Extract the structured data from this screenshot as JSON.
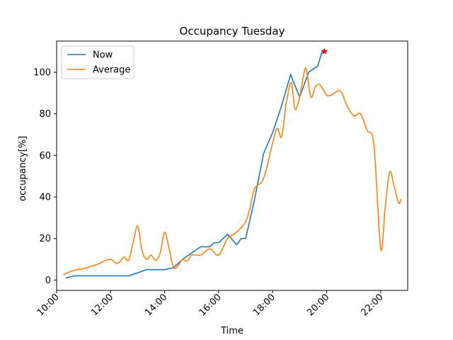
{
  "chart_data": {
    "type": "line",
    "title": "Occupancy Tuesday",
    "xlabel": "Time",
    "ylabel": "occupancy[%]",
    "xlim": [
      "10:00",
      "23:00"
    ],
    "ylim": [
      -5,
      115
    ],
    "x_ticks": [
      "10:00",
      "12:00",
      "14:00",
      "16:00",
      "18:00",
      "20:00",
      "22:00"
    ],
    "y_ticks": [
      0,
      20,
      40,
      60,
      80,
      100
    ],
    "grid": false,
    "legend_position": "top-left",
    "series": [
      {
        "name": "Now",
        "color": "#1f77b4",
        "x": [
          "10:20",
          "10:40",
          "11:00",
          "11:20",
          "11:40",
          "12:00",
          "12:20",
          "12:40",
          "13:00",
          "13:20",
          "13:40",
          "14:00",
          "14:20",
          "14:40",
          "15:00",
          "15:20",
          "15:40",
          "15:50",
          "16:00",
          "16:20",
          "16:40",
          "16:50",
          "17:00",
          "17:20",
          "17:40",
          "18:00",
          "18:20",
          "18:40",
          "18:45",
          "19:00",
          "19:20",
          "19:40",
          "19:50"
        ],
        "y": [
          1,
          2,
          2,
          2,
          2,
          2,
          2,
          2,
          3.5,
          5,
          5,
          5,
          6,
          10,
          13,
          16,
          16,
          18,
          18,
          22,
          17,
          20,
          20,
          39,
          61,
          71,
          84,
          99,
          96,
          88,
          100,
          103,
          110
        ]
      },
      {
        "name": "Average",
        "color": "#ff7f0e",
        "x": [
          "10:15",
          "10:30",
          "10:45",
          "11:00",
          "11:15",
          "11:30",
          "11:45",
          "12:00",
          "12:15",
          "12:30",
          "12:40",
          "12:50",
          "13:00",
          "13:10",
          "13:20",
          "13:30",
          "13:40",
          "13:50",
          "14:00",
          "14:10",
          "14:20",
          "14:30",
          "14:40",
          "14:50",
          "15:00",
          "15:20",
          "15:40",
          "16:00",
          "16:20",
          "16:40",
          "17:00",
          "17:10",
          "17:20",
          "17:40",
          "18:00",
          "18:10",
          "18:20",
          "18:30",
          "18:40",
          "18:45",
          "18:50",
          "19:00",
          "19:10",
          "19:15",
          "19:25",
          "19:35",
          "19:45",
          "20:00",
          "20:10",
          "20:30",
          "20:45",
          "21:00",
          "21:15",
          "21:30",
          "21:45",
          "22:00",
          "22:10",
          "22:20",
          "22:30",
          "22:40",
          "22:45"
        ],
        "y": [
          2.5,
          4,
          5,
          5.5,
          6.5,
          7.5,
          9,
          10,
          8,
          11,
          9.5,
          18,
          26,
          14,
          10,
          12,
          9.5,
          13,
          23,
          15,
          6,
          7,
          10,
          9,
          12,
          12,
          15,
          12,
          20,
          23,
          28,
          35,
          44,
          49,
          66,
          73,
          69,
          85,
          95,
          90,
          82,
          88,
          100,
          101,
          88,
          93,
          94,
          89,
          89,
          91,
          84,
          79,
          80,
          72,
          65,
          15,
          35,
          52,
          45,
          37,
          39
        ]
      }
    ],
    "star_marker": {
      "x": "19:55",
      "y": 110,
      "color": "#ff0000"
    }
  }
}
